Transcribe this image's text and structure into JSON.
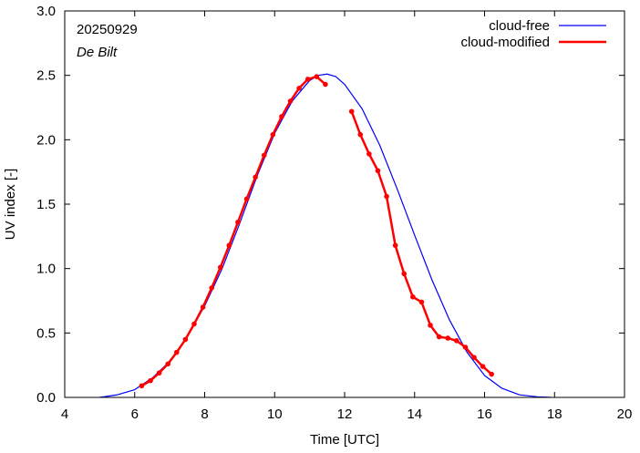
{
  "chart_data": {
    "type": "line",
    "date_label": "20250929",
    "location_label": "De Bilt",
    "xlabel": "Time  [UTC]",
    "ylabel": "UV index  [-]",
    "xlim": [
      4,
      20
    ],
    "ylim": [
      0.0,
      3.0
    ],
    "x_ticks": [
      4,
      6,
      8,
      10,
      12,
      14,
      16,
      18,
      20
    ],
    "y_ticks": [
      "0.0",
      "0.5",
      "1.0",
      "1.5",
      "2.0",
      "2.5",
      "3.0"
    ],
    "legend_position": "top-right",
    "grid": false,
    "series": [
      {
        "name": "cloud-free",
        "color": "#0000ff",
        "markers": false,
        "x": [
          5.0,
          5.5,
          6.0,
          6.5,
          7.0,
          7.5,
          8.0,
          8.5,
          9.0,
          9.5,
          10.0,
          10.5,
          11.0,
          11.25,
          11.5,
          11.75,
          12.0,
          12.5,
          13.0,
          13.5,
          14.0,
          14.5,
          15.0,
          15.5,
          16.0,
          16.5,
          17.0,
          17.5,
          17.9
        ],
        "y": [
          0.0,
          0.02,
          0.06,
          0.15,
          0.28,
          0.47,
          0.71,
          1.0,
          1.35,
          1.72,
          2.05,
          2.3,
          2.46,
          2.5,
          2.51,
          2.49,
          2.43,
          2.24,
          1.96,
          1.62,
          1.26,
          0.91,
          0.6,
          0.35,
          0.17,
          0.07,
          0.02,
          0.005,
          0.0
        ]
      },
      {
        "name": "cloud-modified",
        "color": "#ff0000",
        "markers": true,
        "segments": [
          {
            "x": [
              6.2,
              6.45,
              6.7,
              6.95,
              7.2,
              7.45,
              7.7,
              7.95,
              8.2,
              8.45,
              8.7,
              8.95,
              9.2,
              9.45,
              9.7,
              9.95,
              10.2,
              10.45,
              10.7,
              10.95,
              11.2,
              11.45
            ],
            "y": [
              0.09,
              0.13,
              0.19,
              0.26,
              0.35,
              0.45,
              0.57,
              0.7,
              0.85,
              1.01,
              1.18,
              1.36,
              1.54,
              1.71,
              1.88,
              2.04,
              2.18,
              2.3,
              2.4,
              2.47,
              2.49,
              2.43
            ]
          },
          {
            "x": [
              12.2,
              12.45,
              12.7,
              12.95,
              13.2,
              13.45,
              13.7,
              13.95,
              14.2,
              14.45,
              14.7,
              14.95,
              15.2,
              15.45,
              15.7,
              15.95,
              16.2
            ],
            "y": [
              2.22,
              2.04,
              1.89,
              1.76,
              1.56,
              1.18,
              0.96,
              0.78,
              0.74,
              0.56,
              0.47,
              0.46,
              0.44,
              0.39,
              0.31,
              0.24,
              0.18
            ]
          }
        ]
      }
    ]
  }
}
